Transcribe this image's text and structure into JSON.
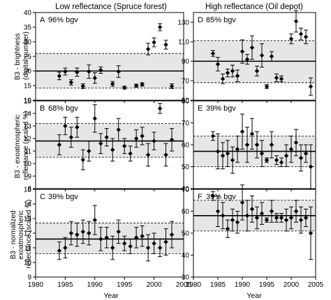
{
  "column_titles": [
    "Low reflectance (Spruce forest)",
    "High reflectance (Oil depot)"
  ],
  "row_titles": [
    [
      "B3 - brightness",
      "(digital number)"
    ],
    [
      "B3 - exoatmospheric",
      "reflectance (scaled %)"
    ],
    [
      "B3 - normalized",
      "exoatmospheric",
      "reflectance (scaled %)"
    ]
  ],
  "x_title": "Year",
  "x_ticks": [
    1980,
    1985,
    1990,
    1995,
    2000,
    2005
  ],
  "style": {
    "band_color": "#e6e6e6",
    "mark_color": "#000000"
  },
  "chart_data": [
    {
      "type": "scatter",
      "panel": "A",
      "label": "A",
      "annotation": "96% bgv",
      "xlim": [
        1980,
        2005
      ],
      "ylim": [
        10,
        40
      ],
      "yticks": [
        10,
        15,
        20,
        25,
        30,
        35,
        40
      ],
      "mean": 20,
      "band": [
        14.2,
        26
      ],
      "points": [
        {
          "x": 1984,
          "y": 18.3,
          "lo": 17.0,
          "hi": 19.6
        },
        {
          "x": 1985,
          "y": 19.8,
          "lo": 18.6,
          "hi": 21.0
        },
        {
          "x": 1986,
          "y": 16.1,
          "lo": 15.2,
          "hi": 17.0
        },
        {
          "x": 1987,
          "y": 19.6,
          "lo": 18.2,
          "hi": 21.0
        },
        {
          "x": 1988,
          "y": 14.8,
          "lo": 14.0,
          "hi": 15.6
        },
        {
          "x": 1989,
          "y": 19.8,
          "lo": 17.5,
          "hi": 22.1
        },
        {
          "x": 1990,
          "y": 17.6,
          "lo": 15.8,
          "hi": 19.4
        },
        {
          "x": 1991,
          "y": 20.3,
          "lo": 19.2,
          "hi": 21.4
        },
        {
          "x": 1993,
          "y": 15.6,
          "lo": 14.8,
          "hi": 16.4
        },
        {
          "x": 1994,
          "y": 19.8,
          "lo": 17.8,
          "hi": 21.8
        },
        {
          "x": 1995,
          "y": 14.3,
          "lo": 13.8,
          "hi": 14.8
        },
        {
          "x": 1997,
          "y": 15.0,
          "lo": 14.5,
          "hi": 15.5
        },
        {
          "x": 1998,
          "y": 15.4,
          "lo": 14.8,
          "hi": 16.0
        },
        {
          "x": 1999,
          "y": 27.5,
          "lo": 25.5,
          "hi": 29.5
        },
        {
          "x": 2000,
          "y": 29.8,
          "lo": 28.3,
          "hi": 31.3
        },
        {
          "x": 2001,
          "y": 35.0,
          "lo": 33.8,
          "hi": 36.2
        },
        {
          "x": 2002,
          "y": 29.0,
          "lo": 27.5,
          "hi": 30.5
        },
        {
          "x": 2003,
          "y": 14.8,
          "lo": 14.0,
          "hi": 15.6
        }
      ]
    },
    {
      "type": "scatter",
      "panel": "D",
      "label": "D",
      "annotation": "85% bgv",
      "xlim": [
        1980,
        2005
      ],
      "ylim": [
        50,
        140
      ],
      "yticks": [
        50,
        70,
        90,
        110,
        130
      ],
      "mean": 90,
      "band": [
        68,
        111
      ],
      "points": [
        {
          "x": 1984,
          "y": 98,
          "lo": 95,
          "hi": 101
        },
        {
          "x": 1985,
          "y": 87,
          "lo": 80,
          "hi": 94
        },
        {
          "x": 1986,
          "y": 72,
          "lo": 67,
          "hi": 77
        },
        {
          "x": 1987,
          "y": 78,
          "lo": 74,
          "hi": 82
        },
        {
          "x": 1988,
          "y": 80,
          "lo": 74,
          "hi": 86
        },
        {
          "x": 1989,
          "y": 75,
          "lo": 69,
          "hi": 81
        },
        {
          "x": 1990,
          "y": 100,
          "lo": 88,
          "hi": 112
        },
        {
          "x": 1991,
          "y": 92,
          "lo": 87,
          "hi": 97
        },
        {
          "x": 1992,
          "y": 104,
          "lo": 92,
          "hi": 116
        },
        {
          "x": 1993,
          "y": 80,
          "lo": 75,
          "hi": 85
        },
        {
          "x": 1994,
          "y": 96,
          "lo": 84,
          "hi": 108
        },
        {
          "x": 1995,
          "y": 64,
          "lo": 62,
          "hi": 66
        },
        {
          "x": 1996,
          "y": 95,
          "lo": 90,
          "hi": 100
        },
        {
          "x": 1997,
          "y": 73,
          "lo": 69,
          "hi": 77
        },
        {
          "x": 1998,
          "y": 72,
          "lo": 69,
          "hi": 75
        },
        {
          "x": 2000,
          "y": 113,
          "lo": 108,
          "hi": 118
        },
        {
          "x": 2001,
          "y": 131,
          "lo": 120,
          "hi": 142
        },
        {
          "x": 2002,
          "y": 118,
          "lo": 112,
          "hi": 124
        },
        {
          "x": 2003,
          "y": 115,
          "lo": 108,
          "hi": 122
        },
        {
          "x": 2004,
          "y": 64,
          "lo": 55,
          "hi": 73
        }
      ]
    },
    {
      "type": "scatter",
      "panel": "B",
      "label": "B",
      "annotation": "68% bgv",
      "xlim": [
        1980,
        2005
      ],
      "ylim": [
        8,
        15
      ],
      "yticks": [
        8,
        9,
        10,
        11,
        12,
        13,
        14,
        15
      ],
      "mean": 11.8,
      "band": [
        10.5,
        13.2
      ],
      "points": [
        {
          "x": 1984,
          "y": 11.5,
          "lo": 10.7,
          "hi": 12.3
        },
        {
          "x": 1985,
          "y": 13.0,
          "lo": 12.3,
          "hi": 13.7
        },
        {
          "x": 1986,
          "y": 12.1,
          "lo": 11.3,
          "hi": 12.9
        },
        {
          "x": 1987,
          "y": 12.9,
          "lo": 12.1,
          "hi": 13.7
        },
        {
          "x": 1988,
          "y": 10.3,
          "lo": 9.5,
          "hi": 11.1
        },
        {
          "x": 1989,
          "y": 11.0,
          "lo": 10.2,
          "hi": 11.8
        },
        {
          "x": 1990,
          "y": 13.6,
          "lo": 12.5,
          "hi": 14.7
        },
        {
          "x": 1991,
          "y": 11.6,
          "lo": 10.8,
          "hi": 12.4
        },
        {
          "x": 1992,
          "y": 12.1,
          "lo": 11.4,
          "hi": 12.8
        },
        {
          "x": 1993,
          "y": 11.1,
          "lo": 10.2,
          "hi": 12.0
        },
        {
          "x": 1994,
          "y": 12.7,
          "lo": 11.8,
          "hi": 13.6
        },
        {
          "x": 1995,
          "y": 11.4,
          "lo": 10.8,
          "hi": 12.0
        },
        {
          "x": 1996,
          "y": 10.8,
          "lo": 10.2,
          "hi": 11.4
        },
        {
          "x": 1997,
          "y": 12.0,
          "lo": 11.3,
          "hi": 12.7
        },
        {
          "x": 1998,
          "y": 12.2,
          "lo": 11.5,
          "hi": 12.9
        },
        {
          "x": 1999,
          "y": 10.7,
          "lo": 9.8,
          "hi": 11.6
        },
        {
          "x": 2000,
          "y": 11.8,
          "lo": 11.1,
          "hi": 12.5
        },
        {
          "x": 2001,
          "y": 14.4,
          "lo": 14.0,
          "hi": 14.8
        },
        {
          "x": 2002,
          "y": 10.7,
          "lo": 9.8,
          "hi": 11.6
        },
        {
          "x": 2003,
          "y": 11.9,
          "lo": 11.0,
          "hi": 12.8
        }
      ]
    },
    {
      "type": "scatter",
      "panel": "E",
      "label": "E",
      "annotation": "39% bgv",
      "xlim": [
        1980,
        2005
      ],
      "ylim": [
        40,
        80
      ],
      "yticks": [
        40,
        50,
        60,
        70,
        80
      ],
      "mean": 57,
      "band": [
        50,
        64
      ],
      "points": [
        {
          "x": 1984,
          "y": 64,
          "lo": 62,
          "hi": 66
        },
        {
          "x": 1985,
          "y": 57,
          "lo": 49,
          "hi": 65
        },
        {
          "x": 1986,
          "y": 55,
          "lo": 49,
          "hi": 61
        },
        {
          "x": 1987,
          "y": 56,
          "lo": 50,
          "hi": 62
        },
        {
          "x": 1988,
          "y": 53,
          "lo": 47,
          "hi": 59
        },
        {
          "x": 1989,
          "y": 58,
          "lo": 52,
          "hi": 64
        },
        {
          "x": 1990,
          "y": 66,
          "lo": 58,
          "hi": 74
        },
        {
          "x": 1991,
          "y": 60,
          "lo": 52,
          "hi": 68
        },
        {
          "x": 1992,
          "y": 65,
          "lo": 58,
          "hi": 72
        },
        {
          "x": 1993,
          "y": 60,
          "lo": 54,
          "hi": 66
        },
        {
          "x": 1994,
          "y": 56,
          "lo": 50,
          "hi": 62
        },
        {
          "x": 1995,
          "y": 53,
          "lo": 52,
          "hi": 54
        },
        {
          "x": 1996,
          "y": 60,
          "lo": 54,
          "hi": 66
        },
        {
          "x": 1997,
          "y": 53,
          "lo": 51,
          "hi": 55
        },
        {
          "x": 1998,
          "y": 52,
          "lo": 50,
          "hi": 54
        },
        {
          "x": 1999,
          "y": 55,
          "lo": 50,
          "hi": 60
        },
        {
          "x": 2000,
          "y": 58,
          "lo": 52,
          "hi": 64
        },
        {
          "x": 2001,
          "y": 61,
          "lo": 55,
          "hi": 67
        },
        {
          "x": 2002,
          "y": 54,
          "lo": 48,
          "hi": 60
        },
        {
          "x": 2003,
          "y": 56,
          "lo": 52,
          "hi": 60
        },
        {
          "x": 2004,
          "y": 50,
          "lo": 40,
          "hi": 60
        }
      ]
    },
    {
      "type": "scatter",
      "panel": "C",
      "label": "C",
      "annotation": "39% bgv",
      "xlim": [
        1980,
        2005
      ],
      "ylim": [
        9,
        15
      ],
      "yticks": [
        9,
        10,
        11,
        12,
        13,
        14,
        15
      ],
      "mean": 11.6,
      "band": [
        10.6,
        12.7
      ],
      "points": [
        {
          "x": 1984,
          "y": 10.8,
          "lo": 10.2,
          "hi": 11.4
        },
        {
          "x": 1985,
          "y": 11.0,
          "lo": 10.3,
          "hi": 11.7
        },
        {
          "x": 1986,
          "y": 12.0,
          "lo": 11.2,
          "hi": 12.8
        },
        {
          "x": 1987,
          "y": 11.9,
          "lo": 11.1,
          "hi": 12.7
        },
        {
          "x": 1988,
          "y": 12.1,
          "lo": 11.3,
          "hi": 12.9
        },
        {
          "x": 1989,
          "y": 12.0,
          "lo": 11.2,
          "hi": 12.8
        },
        {
          "x": 1990,
          "y": 12.9,
          "lo": 11.9,
          "hi": 13.9
        },
        {
          "x": 1991,
          "y": 11.6,
          "lo": 10.8,
          "hi": 12.4
        },
        {
          "x": 1992,
          "y": 11.7,
          "lo": 11.0,
          "hi": 12.4
        },
        {
          "x": 1993,
          "y": 11.0,
          "lo": 10.2,
          "hi": 11.8
        },
        {
          "x": 1994,
          "y": 12.1,
          "lo": 11.3,
          "hi": 12.9
        },
        {
          "x": 1995,
          "y": 11.3,
          "lo": 10.8,
          "hi": 11.8
        },
        {
          "x": 1996,
          "y": 11.1,
          "lo": 10.6,
          "hi": 11.6
        },
        {
          "x": 1997,
          "y": 11.7,
          "lo": 11.0,
          "hi": 12.4
        },
        {
          "x": 1998,
          "y": 11.8,
          "lo": 11.1,
          "hi": 12.5
        },
        {
          "x": 1999,
          "y": 11.0,
          "lo": 10.1,
          "hi": 11.9
        },
        {
          "x": 2000,
          "y": 11.3,
          "lo": 10.6,
          "hi": 12.0
        },
        {
          "x": 2001,
          "y": 11.0,
          "lo": 10.4,
          "hi": 11.6
        },
        {
          "x": 2002,
          "y": 11.4,
          "lo": 10.5,
          "hi": 12.3
        },
        {
          "x": 2003,
          "y": 11.9,
          "lo": 11.0,
          "hi": 12.8
        }
      ]
    },
    {
      "type": "scatter",
      "panel": "F",
      "label": "F",
      "annotation": "39% bgv",
      "xlim": [
        1980,
        2005
      ],
      "ylim": [
        30,
        70
      ],
      "yticks": [
        30,
        40,
        50,
        60,
        70
      ],
      "mean": 58,
      "band": [
        51,
        65
      ],
      "points": [
        {
          "x": 1984,
          "y": 67,
          "lo": 65,
          "hi": 69
        },
        {
          "x": 1985,
          "y": 60,
          "lo": 53,
          "hi": 67
        },
        {
          "x": 1986,
          "y": 58,
          "lo": 52,
          "hi": 64
        },
        {
          "x": 1987,
          "y": 52,
          "lo": 48,
          "hi": 56
        },
        {
          "x": 1988,
          "y": 56,
          "lo": 51,
          "hi": 61
        },
        {
          "x": 1989,
          "y": 55,
          "lo": 50,
          "hi": 60
        },
        {
          "x": 1990,
          "y": 64,
          "lo": 56,
          "hi": 72
        },
        {
          "x": 1991,
          "y": 58,
          "lo": 51,
          "hi": 65
        },
        {
          "x": 1992,
          "y": 61,
          "lo": 55,
          "hi": 67
        },
        {
          "x": 1993,
          "y": 57,
          "lo": 52,
          "hi": 62
        },
        {
          "x": 1994,
          "y": 59,
          "lo": 54,
          "hi": 64
        },
        {
          "x": 1995,
          "y": 56,
          "lo": 55,
          "hi": 57
        },
        {
          "x": 1996,
          "y": 60,
          "lo": 55,
          "hi": 65
        },
        {
          "x": 1997,
          "y": 57,
          "lo": 55,
          "hi": 59
        },
        {
          "x": 1998,
          "y": 57,
          "lo": 55,
          "hi": 59
        },
        {
          "x": 1999,
          "y": 56,
          "lo": 51,
          "hi": 61
        },
        {
          "x": 2000,
          "y": 57,
          "lo": 52,
          "hi": 62
        },
        {
          "x": 2001,
          "y": 60,
          "lo": 55,
          "hi": 65
        },
        {
          "x": 2002,
          "y": 56,
          "lo": 50,
          "hi": 62
        },
        {
          "x": 2003,
          "y": 57,
          "lo": 53,
          "hi": 61
        },
        {
          "x": 2004,
          "y": 50,
          "lo": 38,
          "hi": 62
        }
      ]
    }
  ]
}
